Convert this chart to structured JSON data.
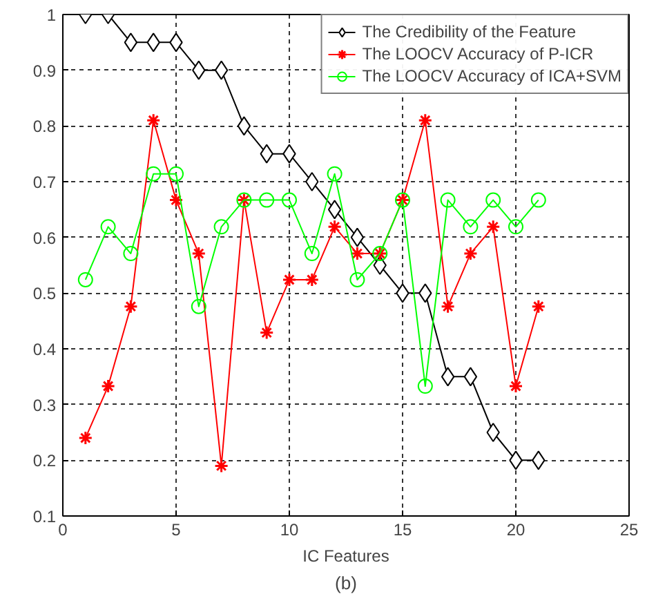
{
  "chart_data": {
    "type": "line",
    "xlabel": "IC Features",
    "annotations": [
      "(b)"
    ],
    "xlim": [
      0,
      25
    ],
    "ylim": [
      0.1,
      1
    ],
    "xticks": [
      0,
      5,
      10,
      15,
      20,
      25
    ],
    "yticks": [
      0.1,
      0.2,
      0.3,
      0.4,
      0.5,
      0.6,
      0.7,
      0.8,
      0.9,
      1
    ],
    "grid": true,
    "legend": "top right",
    "line_style": "solid",
    "x": [
      1,
      2,
      3,
      4,
      5,
      6,
      7,
      8,
      9,
      10,
      11,
      12,
      13,
      14,
      15,
      16,
      17,
      18,
      19,
      20,
      21
    ],
    "series": [
      {
        "name": "The Credibility of the Feature",
        "color": "#000000",
        "marker": "diamond",
        "values": [
          1,
          1,
          0.95,
          0.95,
          0.95,
          0.9,
          0.9,
          0.8,
          0.75,
          0.75,
          0.7,
          0.65,
          0.6,
          0.55,
          0.5,
          0.5,
          0.35,
          0.35,
          0.25,
          0.2,
          0.2
        ]
      },
      {
        "name": "The LOOCV Accuracy of P-ICR",
        "color": "#ff0000",
        "marker": "cross",
        "values": [
          0.24,
          0.333,
          0.476,
          0.81,
          0.667,
          0.571,
          0.19,
          0.667,
          0.429,
          0.524,
          0.524,
          0.619,
          0.571,
          0.571,
          0.667,
          0.81,
          0.476,
          0.571,
          0.619,
          0.333,
          0.476
        ]
      },
      {
        "name": "The LOOCV Accuracy of ICA+SVM",
        "color": "#00ff00",
        "marker": "circle",
        "values": [
          0.524,
          0.619,
          0.571,
          0.714,
          0.714,
          0.476,
          0.619,
          0.667,
          0.667,
          0.667,
          0.571,
          0.714,
          0.524,
          0.571,
          0.667,
          0.333,
          0.667,
          0.619,
          0.667,
          0.619,
          0.667
        ]
      }
    ]
  }
}
